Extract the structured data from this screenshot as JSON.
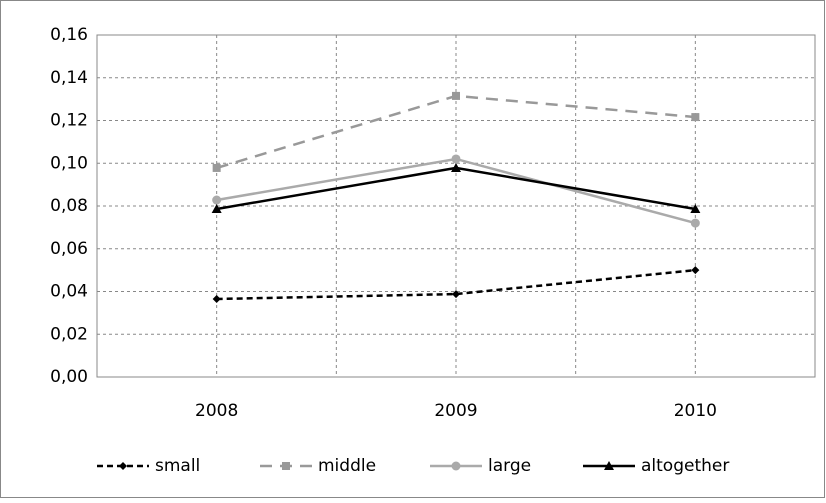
{
  "chart_data": {
    "type": "line",
    "categories": [
      "2008",
      "2009",
      "2010"
    ],
    "series": [
      {
        "name": "small",
        "color": "#000000",
        "dash": "6,4",
        "marker": "diamond",
        "values": [
          0.0365,
          0.0388,
          0.05
        ]
      },
      {
        "name": "middle",
        "color": "#999999",
        "dash": "12,8",
        "marker": "square",
        "values": [
          0.0978,
          0.1315,
          0.1216
        ]
      },
      {
        "name": "large",
        "color": "#aaaaaa",
        "dash": "none",
        "marker": "circle",
        "values": [
          0.0828,
          0.102,
          0.072
        ]
      },
      {
        "name": "altogether",
        "color": "#000000",
        "dash": "none",
        "marker": "triangle",
        "values": [
          0.0786,
          0.0978,
          0.0786
        ]
      }
    ],
    "ylim": [
      0,
      0.16
    ],
    "yticks": [
      {
        "value": 0,
        "label": "0,00"
      },
      {
        "value": 0.02,
        "label": "0,02"
      },
      {
        "value": 0.04,
        "label": "0,04"
      },
      {
        "value": 0.06,
        "label": "0,06"
      },
      {
        "value": 0.08,
        "label": "0,08"
      },
      {
        "value": 0.1,
        "label": "0,10"
      },
      {
        "value": 0.12,
        "label": "0,12"
      },
      {
        "value": 0.14,
        "label": "0,14"
      },
      {
        "value": 0.16,
        "label": "0,16"
      }
    ],
    "grid": true,
    "legend": "bottom"
  }
}
